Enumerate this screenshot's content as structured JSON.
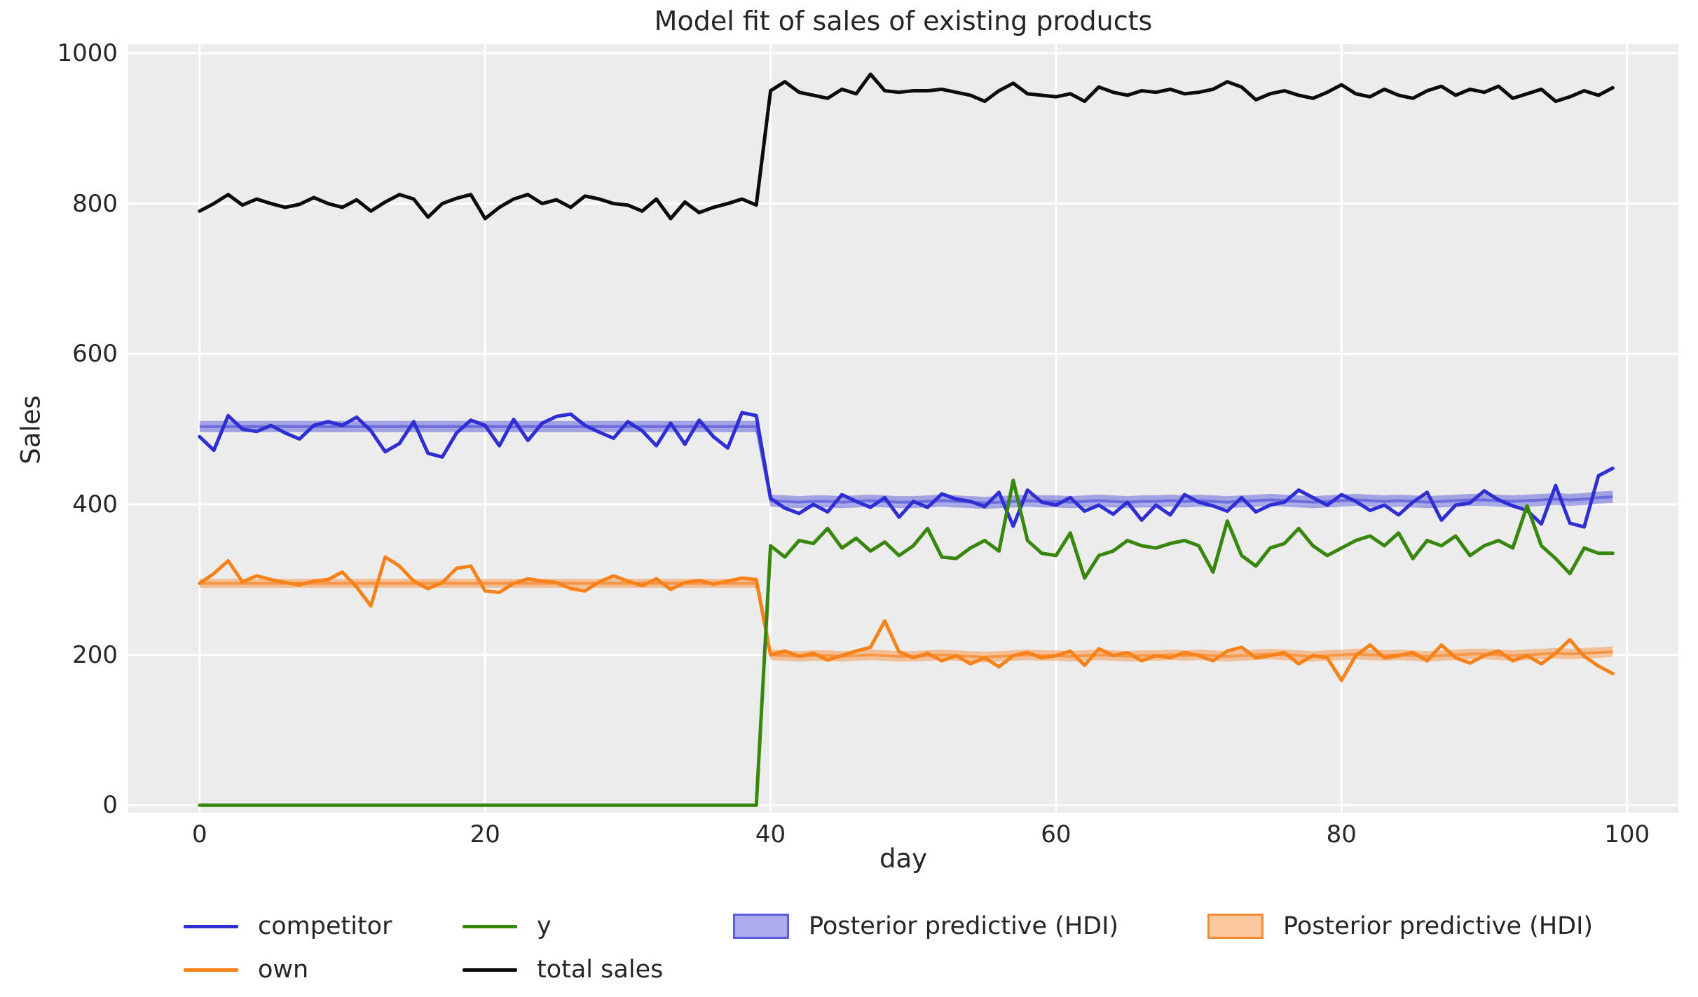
{
  "chart": {
    "title": "Model fit of sales of existing products",
    "xlabel": "day",
    "ylabel": "Sales",
    "plot_background": "#ececec",
    "grid_color": "#ffffff",
    "text_color": "#262626",
    "x_ticks": [
      0,
      20,
      40,
      60,
      80,
      100
    ],
    "y_ticks": [
      0,
      200,
      400,
      600,
      800,
      1000
    ],
    "xlim": [
      -5,
      103.6
    ],
    "ylim": [
      -10,
      1012
    ]
  },
  "chart_data": {
    "type": "line",
    "title": "Model fit of sales of existing products",
    "xlabel": "day",
    "ylabel": "Sales",
    "grid": "on",
    "legend_position": "below",
    "x": [
      0,
      1,
      2,
      3,
      4,
      5,
      6,
      7,
      8,
      9,
      10,
      11,
      12,
      13,
      14,
      15,
      16,
      17,
      18,
      19,
      20,
      21,
      22,
      23,
      24,
      25,
      26,
      27,
      28,
      29,
      30,
      31,
      32,
      33,
      34,
      35,
      36,
      37,
      38,
      39,
      40,
      41,
      42,
      43,
      44,
      45,
      46,
      47,
      48,
      49,
      50,
      51,
      52,
      53,
      54,
      55,
      56,
      57,
      58,
      59,
      60,
      61,
      62,
      63,
      64,
      65,
      66,
      67,
      68,
      69,
      70,
      71,
      72,
      73,
      74,
      75,
      76,
      77,
      78,
      79,
      80,
      81,
      82,
      83,
      84,
      85,
      86,
      87,
      88,
      89,
      90,
      91,
      92,
      93,
      94,
      95,
      96,
      97,
      98,
      99
    ],
    "series": [
      {
        "name": "competitor",
        "color": "#2e2ed2",
        "values": [
          490,
          472,
          518,
          500,
          497,
          505,
          495,
          487,
          505,
          510,
          505,
          516,
          498,
          470,
          481,
          510,
          468,
          463,
          495,
          512,
          505,
          478,
          513,
          485,
          508,
          517,
          520,
          505,
          496,
          488,
          510,
          498,
          478,
          508,
          480,
          512,
          490,
          475,
          522,
          518,
          408,
          395,
          388,
          400,
          390,
          413,
          404,
          396,
          409,
          383,
          404,
          396,
          414,
          407,
          404,
          397,
          416,
          371,
          419,
          403,
          399,
          409,
          391,
          399,
          387,
          403,
          379,
          399,
          386,
          413,
          403,
          398,
          391,
          409,
          390,
          399,
          403,
          419,
          409,
          399,
          413,
          404,
          392,
          399,
          386,
          403,
          416,
          379,
          399,
          402,
          418,
          406,
          398,
          392,
          374,
          425,
          375,
          370,
          438,
          448
        ]
      },
      {
        "name": "own",
        "color": "#f8821a",
        "values": [
          295,
          308,
          325,
          297,
          305,
          300,
          296,
          293,
          298,
          300,
          310,
          290,
          265,
          330,
          318,
          298,
          288,
          296,
          315,
          318,
          285,
          283,
          295,
          301,
          298,
          296,
          288,
          285,
          297,
          305,
          298,
          292,
          301,
          287,
          296,
          299,
          294,
          298,
          302,
          300,
          200,
          205,
          198,
          202,
          193,
          199,
          205,
          210,
          245,
          204,
          196,
          202,
          192,
          199,
          188,
          196,
          184,
          199,
          203,
          196,
          199,
          205,
          186,
          208,
          199,
          203,
          192,
          199,
          196,
          203,
          199,
          192,
          205,
          210,
          196,
          199,
          203,
          188,
          199,
          196,
          166,
          199,
          213,
          196,
          199,
          203,
          192,
          213,
          196,
          189,
          199,
          205,
          192,
          199,
          188,
          202,
          220,
          198,
          185,
          175
        ]
      },
      {
        "name": "y",
        "color": "#38870c",
        "values": [
          0,
          0,
          0,
          0,
          0,
          0,
          0,
          0,
          0,
          0,
          0,
          0,
          0,
          0,
          0,
          0,
          0,
          0,
          0,
          0,
          0,
          0,
          0,
          0,
          0,
          0,
          0,
          0,
          0,
          0,
          0,
          0,
          0,
          0,
          0,
          0,
          0,
          0,
          0,
          0,
          345,
          330,
          352,
          348,
          368,
          342,
          355,
          338,
          350,
          332,
          345,
          368,
          330,
          328,
          342,
          352,
          338,
          432,
          352,
          335,
          332,
          362,
          302,
          332,
          338,
          352,
          345,
          342,
          348,
          352,
          345,
          310,
          378,
          332,
          318,
          342,
          348,
          368,
          345,
          332,
          342,
          352,
          358,
          345,
          362,
          328,
          352,
          345,
          358,
          332,
          345,
          352,
          342,
          398,
          345,
          328,
          308,
          342,
          335,
          335
        ]
      },
      {
        "name": "total sales",
        "color": "#0b0b0b",
        "values": [
          790,
          800,
          812,
          798,
          806,
          800,
          795,
          799,
          808,
          800,
          795,
          805,
          790,
          802,
          812,
          806,
          782,
          800,
          807,
          812,
          780,
          795,
          806,
          812,
          800,
          805,
          795,
          810,
          806,
          800,
          798,
          790,
          806,
          780,
          802,
          788,
          795,
          800,
          806,
          798,
          950,
          962,
          948,
          944,
          940,
          952,
          946,
          972,
          950,
          948,
          950,
          950,
          952,
          948,
          944,
          936,
          950,
          960,
          946,
          944,
          942,
          946,
          936,
          955,
          948,
          944,
          950,
          948,
          952,
          946,
          948,
          952,
          962,
          955,
          938,
          946,
          950,
          944,
          940,
          948,
          958,
          946,
          942,
          952,
          944,
          940,
          950,
          956,
          944,
          952,
          948,
          956,
          940,
          946,
          952,
          936,
          942,
          950,
          944,
          954
        ]
      }
    ],
    "bands": [
      {
        "name": "Posterior predictive (HDI)",
        "color": "#4a4ada",
        "fill_opacity": 0.45,
        "mean_opacity": 0.6,
        "low": [
          496,
          496,
          496,
          496,
          496,
          496,
          496,
          496,
          496,
          496,
          496,
          496,
          496,
          496,
          496,
          496,
          496,
          496,
          496,
          496,
          496,
          496,
          496,
          496,
          496,
          496,
          496,
          496,
          496,
          496,
          496,
          496,
          496,
          496,
          496,
          496,
          496,
          496,
          496,
          496,
          397,
          396,
          395,
          396,
          396,
          395,
          396,
          397,
          396,
          395,
          395,
          396,
          397,
          396,
          395,
          394,
          395,
          396,
          397,
          396,
          396,
          395,
          396,
          397,
          396,
          395,
          396,
          396,
          397,
          396,
          397,
          396,
          395,
          396,
          397,
          398,
          397,
          396,
          395,
          396,
          397,
          398,
          397,
          396,
          397,
          396,
          395,
          396,
          397,
          398,
          398,
          397,
          396,
          397,
          398,
          399,
          398,
          399,
          401,
          402
        ],
        "high": [
          511,
          511,
          511,
          511,
          511,
          511,
          511,
          511,
          511,
          511,
          511,
          511,
          511,
          511,
          511,
          511,
          511,
          511,
          511,
          511,
          511,
          511,
          511,
          511,
          511,
          511,
          511,
          511,
          511,
          511,
          511,
          511,
          511,
          511,
          511,
          511,
          511,
          511,
          511,
          511,
          413,
          412,
          411,
          412,
          412,
          411,
          412,
          413,
          412,
          411,
          411,
          412,
          413,
          412,
          411,
          410,
          411,
          412,
          413,
          412,
          412,
          411,
          412,
          413,
          412,
          411,
          412,
          412,
          413,
          412,
          413,
          412,
          411,
          412,
          413,
          414,
          413,
          412,
          411,
          412,
          413,
          414,
          413,
          412,
          413,
          412,
          411,
          412,
          413,
          414,
          414,
          413,
          412,
          413,
          414,
          415,
          414,
          415,
          417,
          418
        ]
      },
      {
        "name": "Posterior predictive (HDI)",
        "color": "#f97f1d",
        "fill_opacity": 0.42,
        "mean_opacity": 0.65,
        "low": [
          289,
          289,
          289,
          289,
          289,
          289,
          289,
          289,
          289,
          289,
          289,
          289,
          289,
          289,
          289,
          289,
          289,
          289,
          289,
          289,
          289,
          289,
          289,
          289,
          289,
          289,
          289,
          289,
          289,
          289,
          289,
          289,
          289,
          289,
          289,
          289,
          289,
          289,
          289,
          289,
          193,
          192,
          191,
          192,
          192,
          191,
          192,
          193,
          192,
          191,
          191,
          192,
          193,
          192,
          191,
          190,
          191,
          192,
          193,
          192,
          192,
          191,
          192,
          193,
          192,
          191,
          192,
          192,
          193,
          192,
          193,
          192,
          191,
          192,
          193,
          194,
          193,
          192,
          191,
          192,
          193,
          194,
          193,
          192,
          193,
          192,
          191,
          192,
          193,
          194,
          194,
          193,
          192,
          193,
          194,
          195,
          194,
          195,
          196,
          197
        ],
        "high": [
          301,
          301,
          301,
          301,
          301,
          301,
          301,
          301,
          301,
          301,
          301,
          301,
          301,
          301,
          301,
          301,
          301,
          301,
          301,
          301,
          301,
          301,
          301,
          301,
          301,
          301,
          301,
          301,
          301,
          301,
          301,
          301,
          301,
          301,
          301,
          301,
          301,
          301,
          301,
          301,
          207,
          206,
          205,
          206,
          206,
          205,
          206,
          207,
          206,
          205,
          205,
          206,
          207,
          206,
          205,
          204,
          205,
          206,
          207,
          206,
          206,
          205,
          206,
          207,
          206,
          205,
          206,
          206,
          207,
          206,
          207,
          206,
          205,
          206,
          207,
          208,
          207,
          206,
          205,
          206,
          207,
          208,
          207,
          206,
          207,
          206,
          205,
          206,
          207,
          208,
          208,
          207,
          206,
          207,
          208,
          209,
          208,
          209,
          210,
          211
        ]
      }
    ],
    "legend": [
      {
        "label": "competitor",
        "kind": "line",
        "color": "#2e2ed2"
      },
      {
        "label": "own",
        "kind": "line",
        "color": "#f8821a"
      },
      {
        "label": "y",
        "kind": "line",
        "color": "#38870c"
      },
      {
        "label": "total sales",
        "kind": "line",
        "color": "#0b0b0b"
      },
      {
        "label": "Posterior predictive (HDI)",
        "kind": "patch",
        "fill": "rgba(74,74,218,0.45)",
        "border": "#5b5bdd"
      },
      {
        "label": "Posterior predictive (HDI)",
        "kind": "patch",
        "fill": "rgba(249,127,29,0.42)",
        "border": "#f28a37"
      }
    ]
  }
}
